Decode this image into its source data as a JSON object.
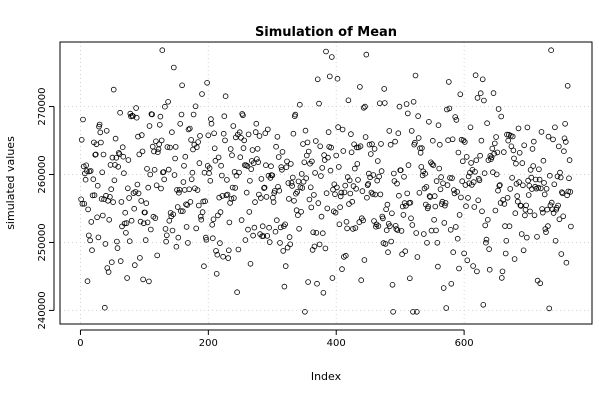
{
  "chart_data": {
    "type": "scatter",
    "title": "Simulation of Mean",
    "xlabel": "Index",
    "ylabel": "simulated values",
    "xlim": [
      -32,
      800
    ],
    "ylim": [
      238000,
      279500
    ],
    "xticks": [
      0,
      200,
      400,
      600
    ],
    "xtick_labels": [
      "0",
      "200",
      "400",
      "600"
    ],
    "yticks": [
      240000,
      250000,
      260000,
      270000
    ],
    "ytick_labels": [
      "240000",
      "250000",
      "260000",
      "270000"
    ],
    "grid": true,
    "marker": "open-circle",
    "marker_color": "#000000",
    "n_points": 767,
    "points": []
  }
}
